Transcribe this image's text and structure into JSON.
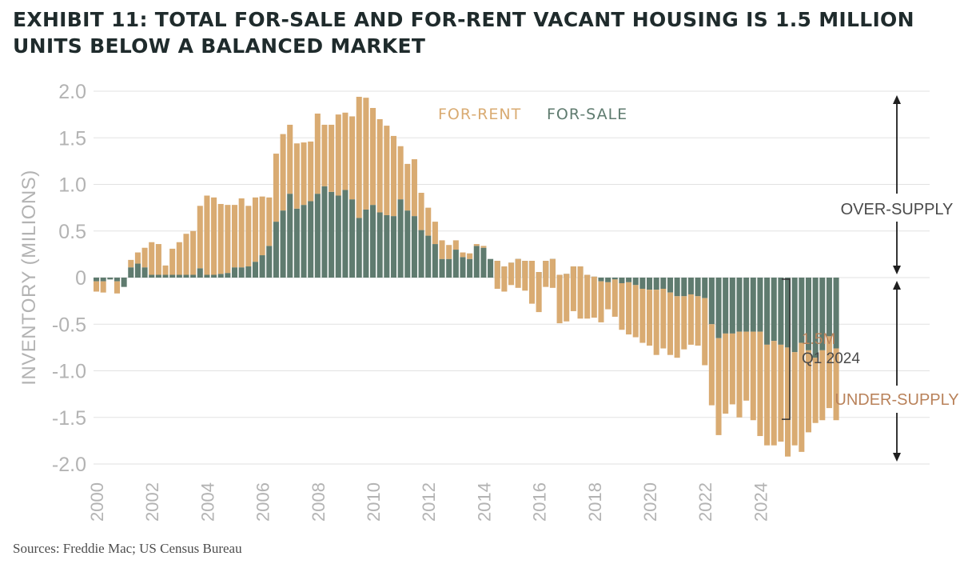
{
  "title": {
    "line1": "EXHIBIT 11: TOTAL FOR-SALE AND FOR-RENT VACANT HOUSING IS 1.5 MILLION",
    "line2": "UNITS BELOW A BALANCED MARKET"
  },
  "source": "Sources: Freddie Mac; US Census Bureau",
  "colors": {
    "for_rent": "#d9ab72",
    "for_sale": "#5f7b6f",
    "grid": "#e2e2e2",
    "axis_text": "#b3b3b3",
    "annotation_orange": "#b9825a",
    "annotation_gray": "#4a4a4a"
  },
  "chart_data": {
    "type": "bar",
    "stacked": true,
    "ylabel": "INVENTORY (MILIONS)",
    "ylim": [
      -2.0,
      2.0
    ],
    "yticks": [
      "2.0",
      "1.5",
      "1.0",
      "0.5",
      "0",
      "-0.5",
      "-1.0",
      "-1.5",
      "-2.0"
    ],
    "ytick_values": [
      2.0,
      1.5,
      1.0,
      0.5,
      0,
      -0.5,
      -1.0,
      -1.5,
      -2.0
    ],
    "x_start": 2000.0,
    "x_step": 0.25,
    "xticks": [
      "2000",
      "2002",
      "2004",
      "2006",
      "2008",
      "2010",
      "2012",
      "2014",
      "2016",
      "2018",
      "2020",
      "2022",
      "2024"
    ],
    "xtick_values": [
      2000,
      2002,
      2004,
      2006,
      2008,
      2010,
      2012,
      2014,
      2016,
      2018,
      2020,
      2022,
      2024
    ],
    "grid": true,
    "legend": {
      "position": "top-center",
      "entries": [
        "FOR-RENT",
        "FOR-SALE"
      ]
    },
    "series": [
      {
        "name": "FOR-SALE",
        "values": [
          -0.04,
          -0.04,
          -0.02,
          -0.04,
          -0.1,
          0.11,
          0.15,
          0.11,
          0.03,
          0.03,
          0.03,
          0.03,
          0.03,
          0.03,
          0.03,
          0.1,
          0.03,
          0.03,
          0.04,
          0.05,
          0.11,
          0.11,
          0.12,
          0.17,
          0.24,
          0.34,
          0.6,
          0.72,
          0.9,
          0.74,
          0.78,
          0.82,
          0.9,
          0.98,
          0.92,
          0.88,
          0.94,
          0.84,
          0.64,
          0.73,
          0.78,
          0.7,
          0.67,
          0.66,
          0.84,
          0.72,
          0.66,
          0.51,
          0.45,
          0.36,
          0.2,
          0.2,
          0.3,
          0.22,
          0.2,
          0.34,
          0.32,
          0.2,
          0.18,
          0.12,
          0.16,
          0.2,
          0.18,
          0.18,
          0.06,
          0.18,
          0.2,
          0.03,
          0.04,
          0.12,
          0.12,
          0.03,
          0.01,
          -0.04,
          -0.05,
          -0.02,
          -0.06,
          -0.05,
          -0.08,
          -0.12,
          -0.13,
          -0.13,
          -0.12,
          -0.16,
          -0.2,
          -0.2,
          -0.18,
          -0.2,
          -0.22,
          -0.5,
          -0.65,
          -0.6,
          -0.6,
          -0.58,
          -0.58,
          -0.58,
          -0.58,
          -0.72,
          -0.68,
          -0.72,
          -0.75,
          -0.8,
          -0.7,
          -0.78,
          -0.86,
          -0.78,
          -0.63,
          -0.76
        ],
        "color": "#5f7b6f"
      },
      {
        "name": "FOR-RENT",
        "values": [
          -0.11,
          -0.12,
          0.0,
          -0.13,
          0.0,
          0.08,
          0.12,
          0.21,
          0.35,
          0.33,
          0.1,
          0.28,
          0.35,
          0.44,
          0.47,
          0.67,
          0.85,
          0.83,
          0.75,
          0.73,
          0.67,
          0.74,
          0.65,
          0.69,
          0.63,
          0.52,
          0.73,
          0.82,
          0.74,
          0.7,
          0.67,
          0.64,
          0.86,
          0.66,
          0.72,
          0.87,
          0.83,
          0.89,
          1.3,
          1.2,
          1.04,
          1.0,
          0.96,
          0.86,
          0.57,
          0.5,
          0.61,
          0.4,
          0.3,
          0.24,
          0.2,
          0.15,
          0.1,
          0.05,
          0.06,
          0.02,
          0.02,
          0.0,
          -0.3,
          -0.27,
          -0.24,
          -0.31,
          -0.32,
          -0.46,
          -0.43,
          -0.28,
          -0.31,
          -0.52,
          -0.51,
          -0.48,
          -0.56,
          -0.47,
          -0.44,
          -0.44,
          -0.29,
          -0.4,
          -0.5,
          -0.56,
          -0.56,
          -0.58,
          -0.6,
          -0.7,
          -0.64,
          -0.67,
          -0.66,
          -0.57,
          -0.54,
          -0.53,
          -0.72,
          -0.87,
          -1.04,
          -0.86,
          -0.76,
          -0.92,
          -0.74,
          -0.95,
          -1.12,
          -1.08,
          -1.12,
          -1.04,
          -1.17,
          -1.0,
          -1.17,
          -0.88,
          -0.7,
          -0.75,
          -0.77,
          -0.77
        ]
      }
    ],
    "annotations": {
      "over_supply": "OVER-SUPPLY",
      "under_supply": "UNDER-SUPPLY",
      "gap_value": "1.5M",
      "gap_period": "Q1 2024"
    }
  }
}
